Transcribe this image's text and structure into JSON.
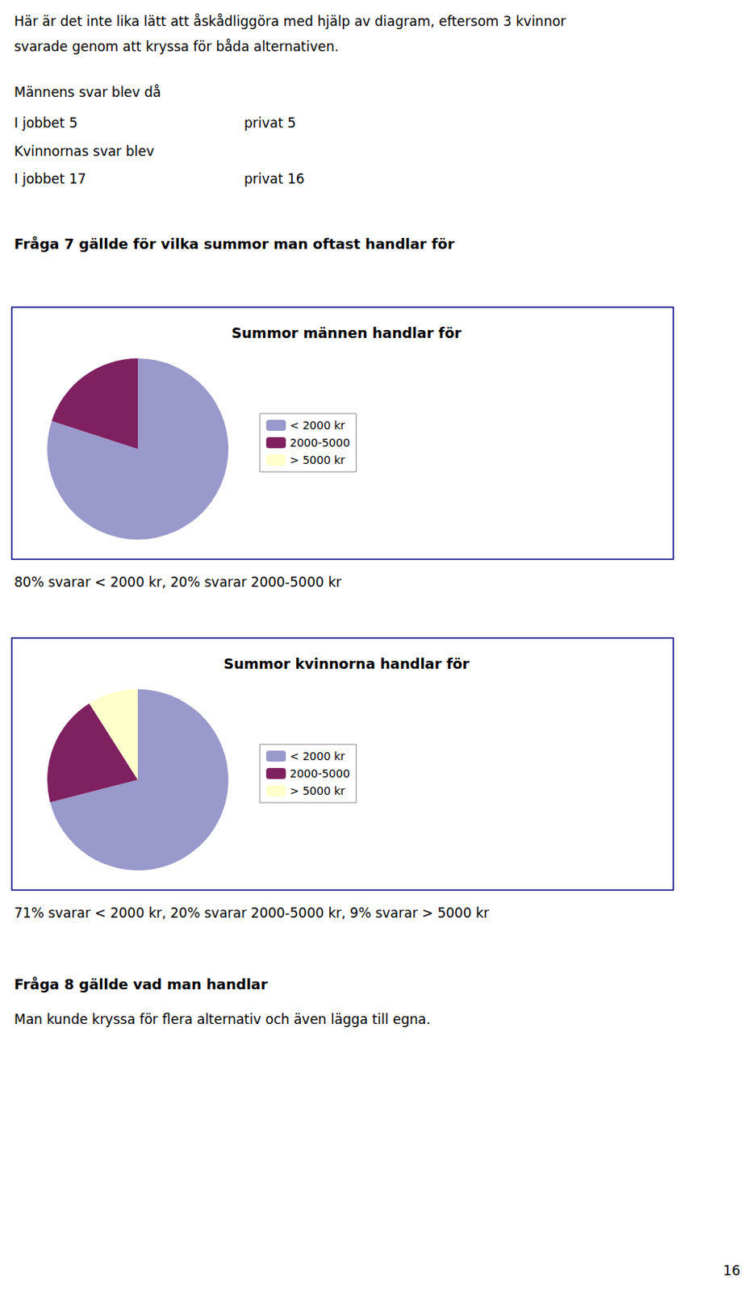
{
  "chart_data": [
    {
      "type": "pie",
      "title": "Summor männen handlar för",
      "categories": [
        "< 2000 kr",
        "2000-5000",
        "> 5000 kr"
      ],
      "values": [
        80,
        20,
        0
      ],
      "colors": [
        "#9999cc",
        "#7f2060",
        "#ffffcc"
      ],
      "legend": "right",
      "annotations": [
        "Här är det inte lika lätt att åskådliggöra med hjälp av diagram, eftersom 3 kvinnor",
        "svarade genom att kryssa för båda alternativen.",
        "Männens svar blev då",
        "I jobbet 5",
        "privat 5",
        "Kvinnornas svar blev",
        "I jobbet 17",
        "privat 16",
        "Fråga 7 gällde för vilka summor man oftast handlar för",
        "80% svarar < 2000 kr, 20% svarar 2000-5000 kr"
      ]
    },
    {
      "type": "pie",
      "title": "Summor kvinnorna handlar för",
      "categories": [
        "< 2000 kr",
        "2000-5000",
        "> 5000 kr"
      ],
      "values": [
        71,
        20,
        9
      ],
      "colors": [
        "#9999cc",
        "#7f2060",
        "#ffffcc"
      ],
      "legend": "right",
      "annotations": [
        "71% svarar < 2000 kr, 20% svarar 2000-5000 kr, 9% svarar > 5000 kr",
        "Fråga 8 gällde vad man handlar",
        "Man kunde kryssa för flera alternativ och även lägga till egna.",
        "16"
      ]
    }
  ]
}
